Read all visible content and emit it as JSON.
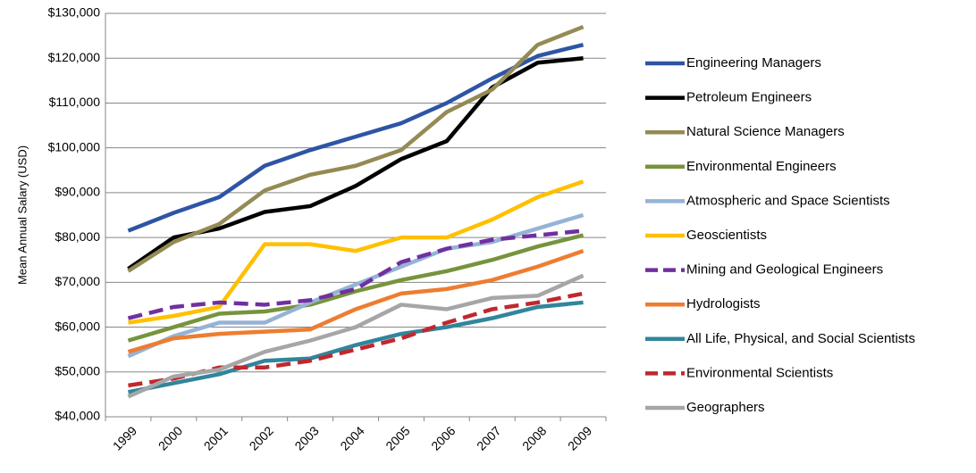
{
  "chart_data": {
    "type": "line",
    "y_label": "Mean Annual Salary (USD)",
    "categories": [
      "1999",
      "2000",
      "2001",
      "2002",
      "2003",
      "2004",
      "2005",
      "2006",
      "2007",
      "2008",
      "2009"
    ],
    "ylim": [
      40000,
      130000
    ],
    "yticks": [
      {
        "value": 40000,
        "label": "$40,000"
      },
      {
        "value": 50000,
        "label": "$50,000"
      },
      {
        "value": 60000,
        "label": "$60,000"
      },
      {
        "value": 70000,
        "label": "$70,000"
      },
      {
        "value": 80000,
        "label": "$80,000"
      },
      {
        "value": 90000,
        "label": "$90,000"
      },
      {
        "value": 100000,
        "label": "$100,000"
      },
      {
        "value": 110000,
        "label": "$110,000"
      },
      {
        "value": 120000,
        "label": "$120,000"
      },
      {
        "value": 130000,
        "label": "$130,000"
      }
    ],
    "grid": true,
    "legend": "right",
    "series": [
      {
        "name": "Engineering Managers",
        "color": "#2e55a4",
        "dash": false,
        "values": [
          81500,
          85500,
          89000,
          96000,
          99500,
          102500,
          105500,
          110000,
          115500,
          120500,
          123000
        ]
      },
      {
        "name": "Petroleum Engineers",
        "color": "#000000",
        "dash": false,
        "values": [
          73000,
          80000,
          82000,
          85700,
          87000,
          91500,
          97500,
          101500,
          113500,
          119000,
          120000
        ]
      },
      {
        "name": "Natural Science Managers",
        "color": "#948a54",
        "dash": false,
        "values": [
          72500,
          79000,
          83000,
          90500,
          94000,
          96000,
          99500,
          108000,
          113000,
          123000,
          127000
        ]
      },
      {
        "name": "Environmental Engineers",
        "color": "#77933c",
        "dash": false,
        "values": [
          57000,
          60000,
          63000,
          63500,
          65000,
          68000,
          70500,
          72500,
          75000,
          78000,
          80500
        ]
      },
      {
        "name": "Atmospheric and Space Scientists",
        "color": "#95b3d7",
        "dash": false,
        "values": [
          53500,
          58000,
          61000,
          61000,
          65500,
          69500,
          73500,
          77500,
          79000,
          82000,
          85000
        ]
      },
      {
        "name": "Geoscientists",
        "color": "#ffc000",
        "dash": false,
        "values": [
          61000,
          62500,
          64500,
          78500,
          78500,
          77000,
          80000,
          80000,
          84000,
          89000,
          92500
        ]
      },
      {
        "name": "Mining and Geological Engineers",
        "color": "#7030a0",
        "dash": true,
        "values": [
          62000,
          64500,
          65500,
          65000,
          66000,
          68500,
          74500,
          77500,
          79500,
          80500,
          81500
        ]
      },
      {
        "name": "Hydrologists",
        "color": "#ed7d31",
        "dash": false,
        "values": [
          54500,
          57500,
          58500,
          59000,
          59500,
          64000,
          67500,
          68500,
          70500,
          73500,
          77000
        ]
      },
      {
        "name": "All Life, Physical, and Social Scientists",
        "color": "#31859c",
        "dash": false,
        "values": [
          45500,
          47500,
          49500,
          52500,
          53000,
          56000,
          58500,
          60000,
          62000,
          64500,
          65500
        ]
      },
      {
        "name": "Environmental Scientists",
        "color": "#c0282d",
        "dash": true,
        "values": [
          47000,
          48500,
          51000,
          51000,
          52500,
          55000,
          57500,
          61000,
          64000,
          65500,
          67500
        ]
      },
      {
        "name": "Geographers",
        "color": "#a6a6a6",
        "dash": false,
        "values": [
          44500,
          49000,
          50500,
          54500,
          57000,
          60000,
          65000,
          64000,
          66500,
          67000,
          71500
        ]
      }
    ]
  }
}
